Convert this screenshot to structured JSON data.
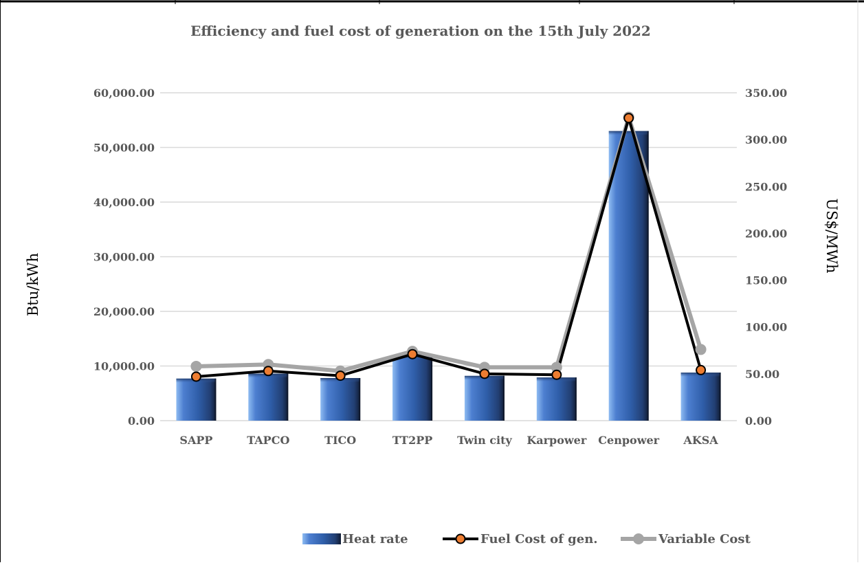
{
  "chart_data": {
    "type": "bar",
    "title": "Efficiency and fuel cost of generation on the 15th July 2022",
    "categories": [
      "SAPP",
      "TAPCO",
      "TICO",
      "TT2PP",
      "Twin city",
      "Karpower",
      "Cenpower",
      "AKSA"
    ],
    "y_left": {
      "label": "Btu/kWh",
      "range": [
        0,
        60000
      ],
      "ticks": [
        "0.00",
        "10,000.00",
        "20,000.00",
        "30,000.00",
        "40,000.00",
        "50,000.00",
        "60,000.00"
      ]
    },
    "y_right": {
      "label": "US$/MWh",
      "range": [
        0,
        350
      ],
      "ticks": [
        "0.00",
        "50.00",
        "100.00",
        "150.00",
        "200.00",
        "250.00",
        "300.00",
        "350.00"
      ]
    },
    "grid": true,
    "legend_position": "bottom",
    "series": [
      {
        "name": "Heat rate",
        "type": "bar",
        "axis": "left",
        "color": "#3b64ad",
        "values": [
          7700,
          8600,
          7800,
          12000,
          8200,
          7900,
          53000,
          8800
        ]
      },
      {
        "name": "Fuel Cost of gen.",
        "type": "line",
        "axis": "right",
        "color": "#000000",
        "marker_color": "#ed7d31",
        "values": [
          47,
          53,
          48,
          71,
          50,
          49,
          323,
          54
        ]
      },
      {
        "name": "Variable Cost",
        "type": "line",
        "axis": "right",
        "color": "#a5a5a5",
        "marker_color": "#a5a5a5",
        "values": [
          58,
          60,
          53,
          74,
          57,
          57,
          324,
          76
        ]
      }
    ]
  }
}
